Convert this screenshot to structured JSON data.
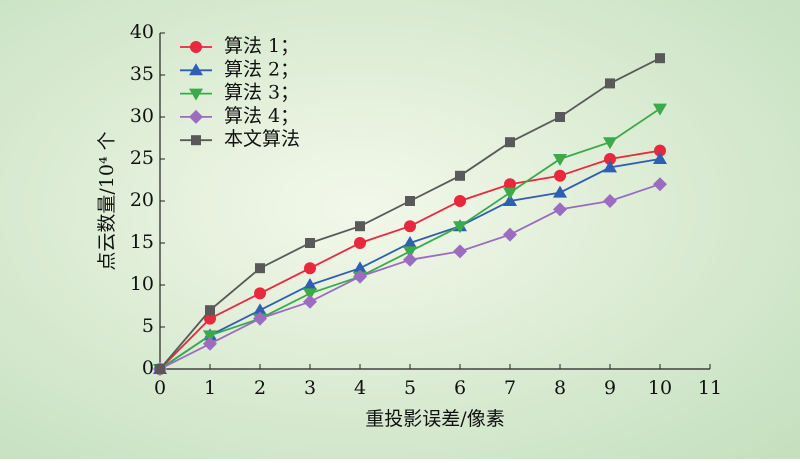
{
  "chart_data": {
    "type": "line",
    "x": [
      0,
      1,
      2,
      3,
      4,
      5,
      6,
      7,
      8,
      9,
      10
    ],
    "xlabel": "重投影误差/像素",
    "ylabel": "点云数量/10⁴ 个",
    "xlim": [
      0,
      11
    ],
    "xticks": [
      0,
      1,
      2,
      3,
      4,
      5,
      6,
      7,
      8,
      9,
      10,
      11
    ],
    "ylim": [
      0,
      40
    ],
    "yticks": [
      0,
      5,
      10,
      15,
      20,
      25,
      30,
      35,
      40
    ],
    "legend": "upper left",
    "series": [
      {
        "name": "算法 1；",
        "color": "#e8283c",
        "marker": "circle",
        "values": [
          0,
          6,
          9,
          12,
          15,
          17,
          20,
          22,
          23,
          25,
          26
        ]
      },
      {
        "name": "算法 2；",
        "color": "#2f5fb3",
        "marker": "triangle-up",
        "values": [
          0,
          4,
          7,
          10,
          12,
          15,
          17,
          20,
          21,
          24,
          25
        ]
      },
      {
        "name": "算法 3；",
        "color": "#3aaa4a",
        "marker": "triangle-down",
        "values": [
          0,
          4,
          6,
          9,
          11,
          14,
          17,
          21,
          25,
          27,
          31
        ]
      },
      {
        "name": "算法 4；",
        "color": "#9b6cc0",
        "marker": "diamond",
        "values": [
          0,
          3,
          6,
          8,
          11,
          13,
          14,
          16,
          19,
          20,
          22
        ]
      },
      {
        "name": "本文算法",
        "color": "#595959",
        "marker": "square",
        "values": [
          0,
          7,
          12,
          15,
          17,
          20,
          23,
          27,
          30,
          34,
          37
        ]
      }
    ]
  }
}
